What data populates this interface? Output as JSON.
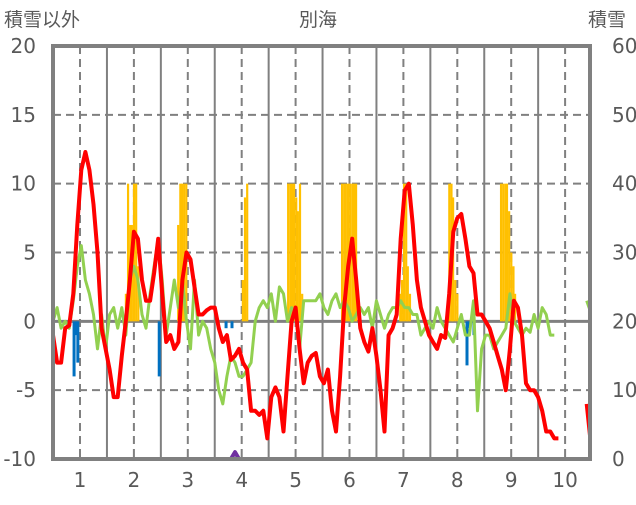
{
  "chart_data": {
    "type": "line",
    "title": "別海",
    "ylabel_left": "積雪以外",
    "ylabel_right": "積雪",
    "xlim": [
      0.5,
      10.45
    ],
    "ylim_left": [
      -10,
      20
    ],
    "ylim_right": [
      0,
      60
    ],
    "x_ticks": [
      "1",
      "2",
      "3",
      "4",
      "5",
      "6",
      "7",
      "8",
      "9",
      "10"
    ],
    "y_ticks_left": [
      "20",
      "15",
      "10",
      "5",
      "0",
      "-5",
      "-10"
    ],
    "y_ticks_right": [
      "60",
      "50",
      "40",
      "30",
      "20",
      "10",
      "0"
    ],
    "grid": true,
    "colors": {
      "red": "#ff0000",
      "green": "#92d050",
      "orange": "#ffc000",
      "blue": "#0070c0",
      "purple": "#7030a0",
      "axis": "#808080"
    },
    "series_x_start": 0.5,
    "series_x_step": 0.075,
    "series": [
      {
        "name": "red-line",
        "axis": "left",
        "color": "#ff0000",
        "values": [
          -1,
          -3,
          -3,
          -0.5,
          -0.3,
          2,
          7,
          11,
          12.3,
          11,
          8.5,
          5,
          -0.5,
          -2,
          -3.5,
          -5.5,
          -5.5,
          -2.5,
          0,
          3,
          6.5,
          6,
          3,
          1.5,
          1.5,
          3.5,
          6,
          2,
          -1.5,
          -1,
          -2,
          -1.5,
          3,
          5,
          4.5,
          2.5,
          0.5,
          0.5,
          0.8,
          1,
          1,
          -0.5,
          -1.5,
          -1,
          -2.8,
          -2.5,
          -2,
          -3,
          -3.5,
          -6.5,
          -6.5,
          -6.8,
          -6.5,
          -8.5,
          -5.5,
          -4.8,
          -5.5,
          -8,
          -4,
          0,
          1,
          -2,
          -4.5,
          -3,
          -2.5,
          -2.3,
          -4,
          -4.5,
          -3.5,
          -6.5,
          -8,
          -4,
          1,
          4,
          6,
          3,
          -0.5,
          -1.5,
          -2.2,
          -0.5,
          -2.5,
          -5,
          -8,
          -1,
          -0.5,
          0.5,
          6,
          9.5,
          10,
          7,
          3,
          1,
          0,
          -1,
          -1.5,
          -2,
          -1,
          -1.2,
          2,
          6.5,
          7.5,
          7.8,
          6,
          4,
          3.5,
          0.5,
          0.5,
          0,
          -0.5,
          -1.5,
          -2.5,
          -3.5,
          -5,
          -2,
          1.5,
          1,
          -1,
          -4.5,
          -5,
          -5,
          -5.5,
          -6.5,
          -8,
          -8,
          -8.5,
          -8.5,
          null,
          null,
          null,
          null,
          null,
          null,
          -6,
          -8.3
        ]
      },
      {
        "name": "green-line",
        "axis": "left",
        "color": "#92d050",
        "values": [
          0,
          1,
          -0.5,
          0,
          -0.5,
          1.5,
          4,
          5.5,
          3,
          2,
          0.5,
          -2,
          0.5,
          -2,
          0.5,
          1,
          -0.5,
          1,
          -1,
          3,
          4,
          3,
          0.5,
          -0.5,
          2,
          4,
          6,
          3,
          -1,
          1,
          3,
          1,
          3,
          0,
          -2,
          3,
          -1,
          0,
          -0.5,
          -2,
          -3,
          -5,
          -6,
          -4,
          -2.5,
          -3,
          -4,
          -4,
          -3.5,
          -3,
          0,
          1,
          1.5,
          1,
          2,
          0,
          2.5,
          2,
          0,
          1,
          0.5,
          -2,
          1.5,
          1.5,
          1.5,
          1.5,
          2,
          1,
          0.5,
          1.5,
          2,
          1,
          1.5,
          1,
          0,
          0.5,
          1,
          0.5,
          1,
          -0.5,
          1.5,
          0.5,
          -0.5,
          0.5,
          1,
          1,
          1.5,
          1,
          1,
          0.5,
          0.5,
          -1,
          -0.5,
          0,
          -0.5,
          1,
          0,
          -0.5,
          -1,
          -1.5,
          -0.5,
          0.5,
          -1,
          -1,
          1.5,
          -6.5,
          -2,
          -1,
          -1,
          -2,
          -1.5,
          -1,
          -0.5,
          2,
          0,
          -0.5,
          -1,
          -0.5,
          -0.8,
          0.5,
          -0.5,
          1,
          0.5,
          -1,
          -1,
          null,
          null,
          null,
          null,
          null,
          null,
          null,
          1.5,
          0.8
        ]
      },
      {
        "name": "snow-depth",
        "axis": "right",
        "color": "#7030a0",
        "values": [
          0,
          0,
          0,
          0,
          0,
          0,
          0,
          0,
          0,
          0,
          0,
          0,
          0,
          0,
          0,
          0,
          0,
          0,
          0,
          0,
          0,
          0,
          0,
          0,
          0,
          0,
          0,
          0,
          0,
          0,
          0,
          0,
          0,
          0,
          0,
          0,
          0,
          0,
          0,
          0,
          0,
          0,
          0,
          0,
          0,
          1,
          0,
          0,
          0,
          0,
          0,
          0,
          0,
          0,
          0,
          0,
          0,
          0,
          0,
          0,
          0,
          0,
          0,
          0,
          0,
          0,
          0,
          0,
          0,
          0,
          0,
          0,
          0,
          0,
          0,
          0,
          0,
          0,
          0,
          0,
          0,
          0,
          0,
          0,
          0,
          0,
          0,
          0,
          0,
          0,
          0,
          0,
          0,
          0,
          0,
          0,
          0,
          0,
          0,
          0,
          0,
          0,
          0,
          0,
          0,
          0,
          0,
          0,
          0,
          0,
          0,
          0,
          0,
          0,
          0,
          0,
          0,
          0,
          0,
          0,
          0,
          0,
          0,
          0,
          0,
          0,
          null,
          null,
          null,
          null,
          null,
          null,
          0,
          0
        ]
      }
    ],
    "bars_orange": [
      [
        1.85,
        2
      ],
      [
        1.89,
        10
      ],
      [
        1.93,
        7
      ],
      [
        1.96,
        7
      ],
      [
        2.0,
        10
      ],
      [
        2.04,
        10
      ],
      [
        2.08,
        4
      ],
      [
        2.82,
        7
      ],
      [
        2.86,
        10
      ],
      [
        2.89,
        10
      ],
      [
        2.93,
        10
      ],
      [
        2.97,
        10
      ],
      [
        4.02,
        3
      ],
      [
        4.06,
        9
      ],
      [
        4.1,
        10
      ],
      [
        4.86,
        10
      ],
      [
        4.9,
        10
      ],
      [
        4.93,
        10
      ],
      [
        4.97,
        10
      ],
      [
        5.01,
        9
      ],
      [
        5.04,
        8
      ],
      [
        5.08,
        10
      ],
      [
        5.12,
        2
      ],
      [
        5.86,
        10
      ],
      [
        5.9,
        10
      ],
      [
        5.93,
        10
      ],
      [
        5.97,
        10
      ],
      [
        6.01,
        10
      ],
      [
        6.05,
        10
      ],
      [
        6.08,
        10
      ],
      [
        6.12,
        10
      ],
      [
        6.94,
        2
      ],
      [
        6.97,
        3
      ],
      [
        7.01,
        10
      ],
      [
        7.05,
        10
      ],
      [
        7.08,
        4
      ],
      [
        7.12,
        2
      ],
      [
        7.85,
        10
      ],
      [
        7.89,
        10
      ],
      [
        7.92,
        9
      ],
      [
        7.96,
        3
      ],
      [
        8.0,
        2
      ],
      [
        8.81,
        10
      ],
      [
        8.85,
        10
      ],
      [
        8.89,
        10
      ],
      [
        8.92,
        10
      ],
      [
        8.96,
        8
      ],
      [
        9.0,
        5
      ],
      [
        9.04,
        4
      ],
      [
        9.07,
        2
      ]
    ],
    "bars_blue": [
      [
        0.89,
        -4
      ],
      [
        0.93,
        -1
      ],
      [
        0.96,
        -3
      ],
      [
        2.47,
        -4
      ],
      [
        3.71,
        -0.5
      ],
      [
        3.82,
        -0.5
      ],
      [
        8.18,
        -3.2
      ],
      [
        8.22,
        -0.5
      ],
      [
        8.31,
        -1
      ]
    ]
  }
}
